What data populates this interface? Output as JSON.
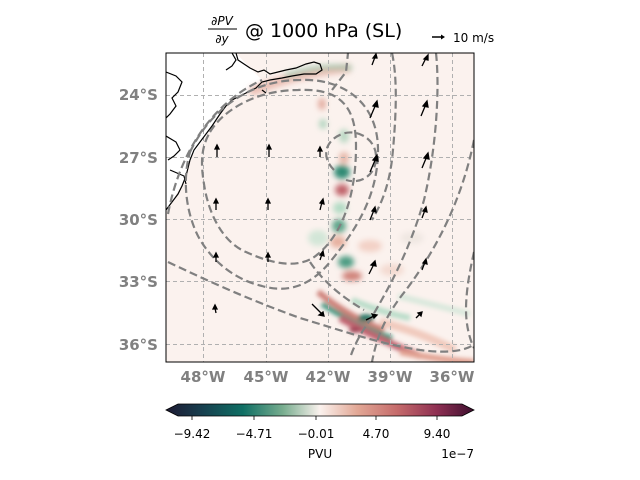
{
  "title": {
    "numerator": "∂PV",
    "denominator": "∂y",
    "rest": "@ 1000 hPa (SL)"
  },
  "quiver_key": {
    "label": "10 m/s"
  },
  "map": {
    "lon_ticks": [
      "48°W",
      "45°W",
      "42°W",
      "39°W",
      "36°W"
    ],
    "lat_ticks": [
      "24°S",
      "27°S",
      "30°S",
      "33°S",
      "36°S"
    ],
    "lon_values": [
      -48,
      -45,
      -42,
      -39,
      -36
    ],
    "lat_values": [
      -24,
      -27,
      -30,
      -33,
      -36
    ],
    "extent": {
      "lon_min": -50,
      "lon_max": -35,
      "lat_min": -36.8,
      "lat_max": -22
    },
    "gridlines": true,
    "coastline": true,
    "contour_style": "dashed gray"
  },
  "colorbar": {
    "ticks": [
      "−9.42",
      "−4.71",
      "−0.01",
      "4.70",
      "9.40"
    ],
    "label": "PVU",
    "exponent": "1e−7",
    "colormap": "curl (green–white–red)",
    "colors": {
      "neg_dark": "#2b1b3a",
      "neg_mid": "#0f6f64",
      "center": "#fbf2ee",
      "pos_mid": "#c56b6b",
      "pos_dark": "#3d0f2f"
    }
  }
}
